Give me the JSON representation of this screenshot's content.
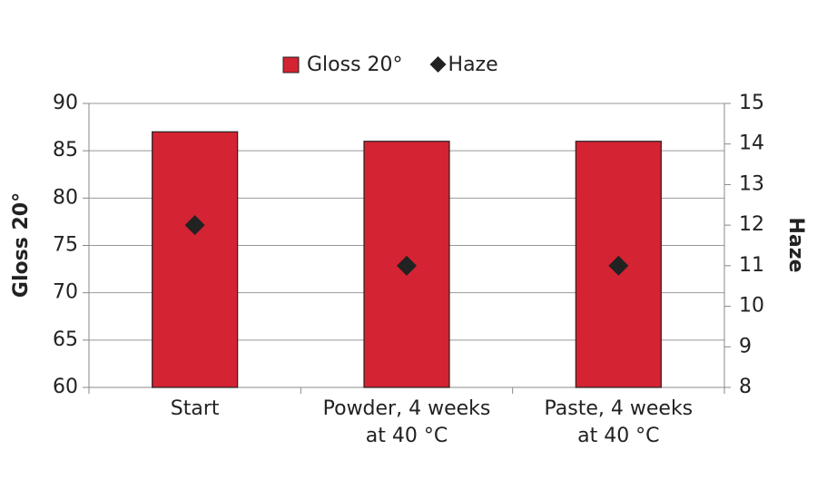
{
  "chart_data": {
    "type": "bar",
    "categories": [
      "Start",
      "Powder, 4 weeks\nat 40 °C",
      "Paste, 4 weeks\nat 40 °C"
    ],
    "series": [
      {
        "name": "Gloss 20°",
        "type": "bar",
        "color": "#d42333",
        "values": [
          87,
          86,
          86
        ]
      },
      {
        "name": "Haze",
        "type": "scatter",
        "axis": "y2",
        "color": "#222222",
        "values": [
          12,
          11,
          11
        ]
      }
    ],
    "ylabel": "Gloss 20°",
    "y2label": "Haze",
    "ylim": [
      60,
      90
    ],
    "yticks": [
      60,
      65,
      70,
      75,
      80,
      85,
      90
    ],
    "y2lim": [
      8,
      15
    ],
    "y2ticks": [
      8,
      9,
      10,
      11,
      12,
      13,
      14,
      15
    ],
    "grid": true,
    "legend": "top"
  }
}
